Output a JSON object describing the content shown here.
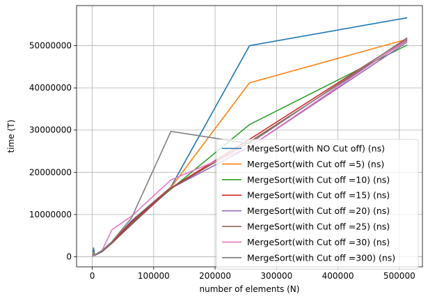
{
  "chart_data": {
    "type": "line",
    "title": "",
    "xlabel": "number of elements (N)",
    "ylabel": "time (T)",
    "xlim": [
      -25600,
      537600
    ],
    "ylim": [
      -2400000,
      59500000
    ],
    "xticks": [
      0,
      100000,
      200000,
      300000,
      400000,
      500000
    ],
    "xtick_labels": [
      "0",
      "100000",
      "200000",
      "300000",
      "400000",
      "500000"
    ],
    "yticks": [
      0,
      10000000,
      20000000,
      30000000,
      40000000,
      50000000
    ],
    "ytick_labels": [
      "0",
      "10000000",
      "20000000",
      "30000000",
      "40000000",
      "50000000"
    ],
    "grid": true,
    "legend_position": "lower-right",
    "series": [
      {
        "name": "MergeSort(with NO Cut off) (ns)",
        "color": "#1f77b4",
        "x": [
          1000,
          2000,
          4000,
          8000,
          16000,
          32000,
          64000,
          128000,
          256000,
          512000
        ],
        "y": [
          300000,
          2100000,
          400000,
          800000,
          1500000,
          3500000,
          8500000,
          16500000,
          50000000,
          56600000
        ]
      },
      {
        "name": "MergeSort(with Cut off =5) (ns)",
        "color": "#ff7f0e",
        "x": [
          1000,
          2000,
          4000,
          8000,
          16000,
          32000,
          64000,
          128000,
          256000,
          512000
        ],
        "y": [
          200000,
          1000000,
          350000,
          700000,
          1400000,
          3400000,
          8300000,
          16400000,
          41200000,
          51500000
        ]
      },
      {
        "name": "MergeSort(with Cut off =10) (ns)",
        "color": "#2ca02c",
        "x": [
          1000,
          2000,
          4000,
          8000,
          16000,
          32000,
          64000,
          128000,
          256000,
          512000
        ],
        "y": [
          150000,
          700000,
          300000,
          650000,
          1300000,
          3300000,
          8100000,
          16000000,
          31300000,
          50100000
        ]
      },
      {
        "name": "MergeSort(with Cut off =15) (ns)",
        "color": "#d62728",
        "x": [
          1000,
          2000,
          4000,
          8000,
          16000,
          32000,
          64000,
          128000,
          256000,
          512000
        ],
        "y": [
          150000,
          600000,
          300000,
          650000,
          1300000,
          3300000,
          8300000,
          16300000,
          27800000,
          51600000
        ]
      },
      {
        "name": "MergeSort(with Cut off =20) (ns)",
        "color": "#9467bd",
        "x": [
          1000,
          2000,
          4000,
          8000,
          16000,
          32000,
          64000,
          128000,
          256000,
          512000
        ],
        "y": [
          150000,
          600000,
          300000,
          600000,
          1200000,
          3200000,
          7600000,
          16200000,
          26000000,
          50800000
        ]
      },
      {
        "name": "MergeSort(with Cut off =25) (ns)",
        "color": "#8c564b",
        "x": [
          1000,
          2000,
          4000,
          8000,
          16000,
          32000,
          64000,
          128000,
          256000,
          512000
        ],
        "y": [
          150000,
          600000,
          300000,
          600000,
          1200000,
          3200000,
          7800000,
          16200000,
          27200000,
          51200000
        ]
      },
      {
        "name": "MergeSort(with Cut off =30) (ns)",
        "color": "#e377c2",
        "x": [
          1000,
          2000,
          4000,
          8000,
          16000,
          32000,
          64000,
          128000,
          256000,
          512000
        ],
        "y": [
          150000,
          600000,
          300000,
          700000,
          1500000,
          6400000,
          9600000,
          18200000,
          26000000,
          51400000
        ]
      },
      {
        "name": "MergeSort(with Cut off =300) (ns)",
        "color": "#7f7f7f",
        "x": [
          1000,
          2000,
          4000,
          8000,
          16000,
          32000,
          64000,
          128000,
          256000,
          512000
        ],
        "y": [
          150000,
          600000,
          300000,
          700000,
          1400000,
          3600000,
          9200000,
          29700000,
          26800000,
          51800000
        ]
      }
    ]
  }
}
